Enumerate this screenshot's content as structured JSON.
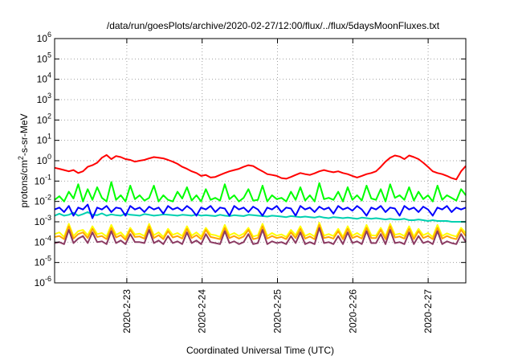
{
  "chart_data": {
    "type": "line",
    "title": "/data/run/goesPlots/archive/2020-02-27/12:00/flux/../flux/5daysMoonFluxes.txt",
    "xlabel": "Coordinated Universal Time (UTC)",
    "ylabel": {
      "base": "protons/cm",
      "sup": "2",
      "rest": "-s-sr-MeV"
    },
    "y_scale": "log",
    "y_range": [
      1e-06,
      1000000.0
    ],
    "y_ticks": [
      {
        "value": 1e-06,
        "base": "10",
        "exp": "-6"
      },
      {
        "value": 1e-05,
        "base": "10",
        "exp": "-5"
      },
      {
        "value": 0.0001,
        "base": "10",
        "exp": "-4"
      },
      {
        "value": 0.001,
        "base": "10",
        "exp": "-3"
      },
      {
        "value": 0.01,
        "base": "10",
        "exp": "-2"
      },
      {
        "value": 0.1,
        "base": "10",
        "exp": "-1"
      },
      {
        "value": 1.0,
        "base": "10",
        "exp": "0"
      },
      {
        "value": 10.0,
        "base": "10",
        "exp": "1"
      },
      {
        "value": 100.0,
        "base": "10",
        "exp": "2"
      },
      {
        "value": 1000.0,
        "base": "10",
        "exp": "3"
      },
      {
        "value": 10000.0,
        "base": "10",
        "exp": "4"
      },
      {
        "value": 100000.0,
        "base": "10",
        "exp": "5"
      },
      {
        "value": 1000000.0,
        "base": "10",
        "exp": "6"
      }
    ],
    "x_range": [
      "2020-02-22T01:00",
      "2020-02-27T12:00"
    ],
    "x_ticks": [
      {
        "label": "2020-2-23",
        "date": "2020-02-23T00:00"
      },
      {
        "label": "2020-2-24",
        "date": "2020-02-24T00:00"
      },
      {
        "label": "2020-2-25",
        "date": "2020-02-25T00:00"
      },
      {
        "label": "2020-2-26",
        "date": "2020-02-26T00:00"
      },
      {
        "label": "2020-2-27",
        "date": "2020-02-27T00:00"
      }
    ],
    "grid": true,
    "series": [
      {
        "color": "#ff0000",
        "y": [
          0.45,
          0.4,
          0.35,
          0.3,
          0.35,
          0.25,
          0.3,
          0.5,
          0.6,
          0.8,
          1.4,
          1.9,
          1.2,
          1.7,
          1.5,
          1.2,
          1.1,
          0.9,
          1.0,
          1.1,
          1.3,
          1.5,
          1.4,
          1.3,
          1.1,
          0.9,
          0.7,
          0.5,
          0.4,
          0.3,
          0.25,
          0.18,
          0.2,
          0.15,
          0.16,
          0.2,
          0.25,
          0.3,
          0.35,
          0.4,
          0.5,
          0.6,
          0.55,
          0.4,
          0.3,
          0.22,
          0.2,
          0.18,
          0.14,
          0.13,
          0.16,
          0.2,
          0.25,
          0.22,
          0.2,
          0.24,
          0.3,
          0.35,
          0.3,
          0.27,
          0.3,
          0.25,
          0.22,
          0.18,
          0.15,
          0.18,
          0.22,
          0.25,
          0.3,
          0.5,
          0.9,
          1.4,
          1.8,
          1.6,
          1.2,
          1.8,
          1.5,
          1.2,
          0.8,
          0.5,
          0.3,
          0.25,
          0.22,
          0.18,
          0.14,
          0.12,
          0.3,
          0.55
        ]
      },
      {
        "color": "#00ff00",
        "y": [
          0.012,
          0.018,
          0.01,
          0.03,
          0.014,
          0.07,
          0.01,
          0.04,
          0.012,
          0.05,
          0.015,
          0.01,
          0.09,
          0.012,
          0.02,
          0.01,
          0.06,
          0.013,
          0.02,
          0.011,
          0.015,
          0.06,
          0.01,
          0.02,
          0.012,
          0.01,
          0.03,
          0.014,
          0.05,
          0.011,
          0.02,
          0.01,
          0.04,
          0.012,
          0.015,
          0.011,
          0.07,
          0.013,
          0.02,
          0.01,
          0.015,
          0.04,
          0.011,
          0.012,
          0.06,
          0.01,
          0.02,
          0.013,
          0.015,
          0.01,
          0.03,
          0.012,
          0.05,
          0.011,
          0.02,
          0.01,
          0.08,
          0.013,
          0.015,
          0.012,
          0.03,
          0.01,
          0.05,
          0.012,
          0.02,
          0.011,
          0.06,
          0.014,
          0.012,
          0.04,
          0.01,
          0.07,
          0.015,
          0.02,
          0.012,
          0.05,
          0.011,
          0.03,
          0.013,
          0.02,
          0.01,
          0.06,
          0.012,
          0.02,
          0.015,
          0.011,
          0.04,
          0.02
        ]
      },
      {
        "color": "#00d0b0",
        "y": [
          0.002,
          0.0025,
          0.002,
          0.0022,
          0.0028,
          0.002,
          0.0024,
          0.003,
          0.0022,
          0.0021,
          0.0026,
          0.002,
          0.0023,
          0.0021,
          0.002,
          0.0025,
          0.0022,
          0.0021,
          0.002,
          0.0024,
          0.0022,
          0.002,
          0.0021,
          0.0023,
          0.0022,
          0.0021,
          0.002,
          0.0022,
          0.0021,
          0.002,
          0.0023,
          0.002,
          0.0021,
          0.002,
          0.0019,
          0.0022,
          0.002,
          0.0019,
          0.0021,
          0.002,
          0.0019,
          0.0022,
          0.0021,
          0.002,
          0.0019,
          0.0018,
          0.002,
          0.0019,
          0.0018,
          0.0017,
          0.0019,
          0.0018,
          0.0017,
          0.0018,
          0.0017,
          0.0016,
          0.0018,
          0.0016,
          0.0015,
          0.0017,
          0.0016,
          0.0015,
          0.0016,
          0.0015,
          0.0014,
          0.0016,
          0.0015,
          0.0014,
          0.0015,
          0.0014,
          0.0013,
          0.0014,
          0.0013,
          0.0013,
          0.0014,
          0.0012,
          0.0012,
          0.0013,
          0.0012,
          0.0011,
          0.0012,
          0.0011,
          0.0011,
          0.0011,
          0.001,
          0.001,
          0.001,
          0.001
        ]
      },
      {
        "color": "#0000ff",
        "y": [
          0.004,
          0.005,
          0.003,
          0.006,
          0.002,
          0.005,
          0.004,
          0.007,
          0.0015,
          0.005,
          0.004,
          0.006,
          0.003,
          0.005,
          0.0045,
          0.002,
          0.006,
          0.004,
          0.005,
          0.003,
          0.0055,
          0.004,
          0.005,
          0.0025,
          0.006,
          0.004,
          0.005,
          0.0035,
          0.006,
          0.004,
          0.002,
          0.005,
          0.004,
          0.006,
          0.003,
          0.005,
          0.0045,
          0.002,
          0.006,
          0.004,
          0.005,
          0.003,
          0.0055,
          0.004,
          0.002,
          0.005,
          0.004,
          0.006,
          0.003,
          0.005,
          0.0045,
          0.002,
          0.006,
          0.004,
          0.005,
          0.003,
          0.0055,
          0.004,
          0.005,
          0.0025,
          0.006,
          0.004,
          0.005,
          0.0035,
          0.006,
          0.004,
          0.002,
          0.005,
          0.004,
          0.006,
          0.003,
          0.005,
          0.0045,
          0.002,
          0.006,
          0.004,
          0.005,
          0.003,
          0.0055,
          0.004,
          0.002,
          0.005,
          0.004,
          0.006,
          0.003,
          0.005,
          0.004,
          0.005
        ]
      },
      {
        "color": "#ffff00",
        "y": [
          0.00025,
          0.0003,
          0.00018,
          0.0008,
          0.0002,
          0.00035,
          0.0004,
          0.00022,
          0.0006,
          0.00025,
          0.00028,
          0.00019,
          0.0007,
          0.00023,
          0.0003,
          0.00017,
          0.0005,
          0.00024,
          0.00026,
          0.0002,
          0.0008,
          0.00022,
          0.0003,
          0.00018,
          0.00045,
          0.00023,
          0.00028,
          0.0002,
          0.0006,
          0.00021,
          0.0003,
          0.00019,
          0.0005,
          0.00024,
          0.00022,
          0.00018,
          0.0007,
          0.00022,
          0.00028,
          0.0002,
          0.00026,
          0.0005,
          0.00019,
          0.00022,
          0.0008,
          0.0002,
          0.00028,
          0.00021,
          0.00024,
          0.00018,
          0.0004,
          0.00022,
          0.0006,
          0.0002,
          0.00026,
          0.00019,
          0.0009,
          0.00021,
          0.00025,
          0.0002,
          0.00045,
          0.00018,
          0.0006,
          0.00021,
          0.00028,
          0.0002,
          0.0007,
          0.00022,
          0.00021,
          0.0005,
          0.00019,
          0.0008,
          0.00023,
          0.00026,
          0.0002,
          0.0006,
          0.00019,
          0.00045,
          0.00022,
          0.00028,
          0.00018,
          0.0007,
          0.0002,
          0.00027,
          0.00022,
          0.00019,
          0.0005,
          0.00028
        ]
      },
      {
        "color": "#ffa500",
        "y": [
          0.00018,
          0.0002,
          0.00014,
          0.0006,
          0.00015,
          0.00025,
          0.0003,
          0.00016,
          0.00045,
          0.00018,
          0.0002,
          0.00014,
          0.0005,
          0.00017,
          0.00022,
          0.00013,
          0.0004,
          0.00018,
          0.00019,
          0.00015,
          0.0006,
          0.00016,
          0.00022,
          0.00014,
          0.00035,
          0.00017,
          0.0002,
          0.00015,
          0.00045,
          0.00016,
          0.00022,
          0.00014,
          0.0004,
          0.00018,
          0.00016,
          0.00014,
          0.0005,
          0.00016,
          0.0002,
          0.00015,
          0.00019,
          0.0004,
          0.00014,
          0.00016,
          0.0006,
          0.00015,
          0.0002,
          0.00016,
          0.00018,
          0.00014,
          0.0003,
          0.00016,
          0.00045,
          0.00015,
          0.00019,
          0.00014,
          0.0007,
          0.00016,
          0.00018,
          0.00015,
          0.00035,
          0.00014,
          0.00045,
          0.00016,
          0.0002,
          0.00015,
          0.0005,
          0.00016,
          0.00016,
          0.0004,
          0.00014,
          0.0006,
          0.00017,
          0.00019,
          0.00015,
          0.00045,
          0.00014,
          0.00035,
          0.00016,
          0.0002,
          0.00014,
          0.0005,
          0.00015,
          0.0002,
          0.00016,
          0.00014,
          0.0004,
          0.0002
        ]
      },
      {
        "color": "#8b3a62",
        "y": [
          9e-05,
          0.0001,
          8e-05,
          0.0004,
          9e-05,
          0.00015,
          0.0002,
          9e-05,
          0.0003,
          0.0001,
          0.00011,
          8e-05,
          0.00035,
          9e-05,
          0.00012,
          8e-05,
          0.00025,
          0.0001,
          0.0001,
          9e-05,
          0.0004,
          9e-05,
          0.00012,
          8e-05,
          0.0002,
          9e-05,
          0.00011,
          8e-05,
          0.0003,
          9e-05,
          0.00012,
          8e-05,
          0.00025,
          0.0001,
          9e-05,
          8e-05,
          0.00035,
          9e-05,
          0.00011,
          8e-05,
          0.0001,
          0.00025,
          8e-05,
          9e-05,
          0.0004,
          8e-05,
          0.00011,
          9e-05,
          0.0001,
          8e-05,
          0.0002,
          9e-05,
          0.0003,
          8e-05,
          0.0001,
          8e-05,
          0.0005,
          9e-05,
          0.0001,
          8e-05,
          0.0002,
          8e-05,
          0.0003,
          9e-05,
          0.00011,
          8e-05,
          0.00035,
          9e-05,
          9e-05,
          0.00025,
          8e-05,
          0.0004,
          9e-05,
          0.0001,
          8e-05,
          0.0003,
          8e-05,
          0.0002,
          9e-05,
          0.00011,
          8e-05,
          0.00035,
          8e-05,
          0.00011,
          9e-05,
          8e-05,
          0.00025,
          0.0001
        ]
      }
    ]
  }
}
